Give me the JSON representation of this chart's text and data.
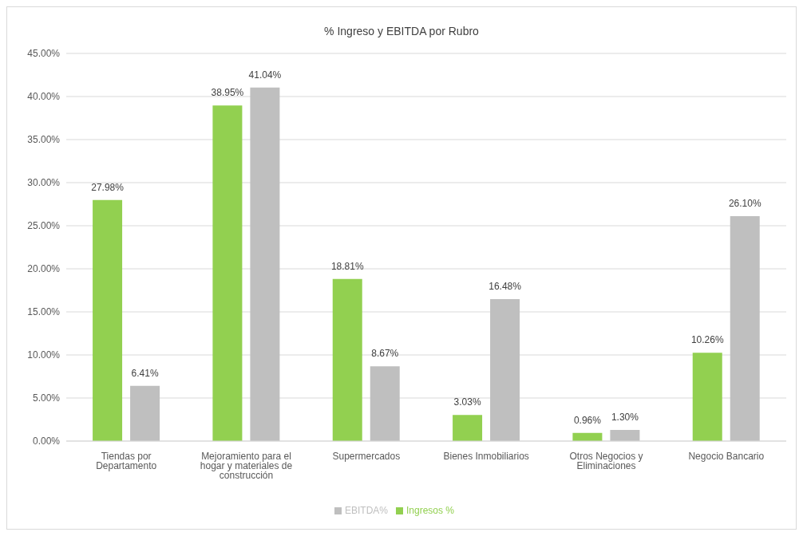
{
  "chart_data": {
    "type": "bar",
    "title": "% Ingreso y EBITDA por Rubro",
    "categories": [
      "Tiendas por Departamento",
      "Mejoramiento para el hogar y materiales de construcción",
      "Supermercados",
      "Bienes Inmobiliarios",
      "Otros Negocios y Eliminaciones",
      "Negocio Bancario"
    ],
    "series": [
      {
        "name": "Ingresos %",
        "color": "#92d050",
        "values": [
          27.98,
          38.95,
          18.81,
          3.03,
          0.96,
          10.26
        ],
        "value_labels": [
          "27.98%",
          "38.95%",
          "18.81%",
          "3.03%",
          "0.96%",
          "10.26%"
        ]
      },
      {
        "name": "EBITDA%",
        "color": "#bfbfbf",
        "values": [
          6.41,
          41.04,
          8.67,
          16.48,
          1.3,
          26.1
        ],
        "value_labels": [
          "6.41%",
          "41.04%",
          "8.67%",
          "16.48%",
          "1.30%",
          "26.10%"
        ]
      }
    ],
    "ylim": [
      0,
      45
    ],
    "yticks": [
      {
        "value": 0,
        "label": "0.00%"
      },
      {
        "value": 5,
        "label": "5.00%"
      },
      {
        "value": 10,
        "label": "10.00%"
      },
      {
        "value": 15,
        "label": "15.00%"
      },
      {
        "value": 20,
        "label": "20.00%"
      },
      {
        "value": 25,
        "label": "25.00%"
      },
      {
        "value": 30,
        "label": "30.00%"
      },
      {
        "value": 35,
        "label": "35.00%"
      },
      {
        "value": 40,
        "label": "40.00%"
      },
      {
        "value": 45,
        "label": "45.00%"
      }
    ],
    "grid": "y",
    "legend": "bottom"
  }
}
